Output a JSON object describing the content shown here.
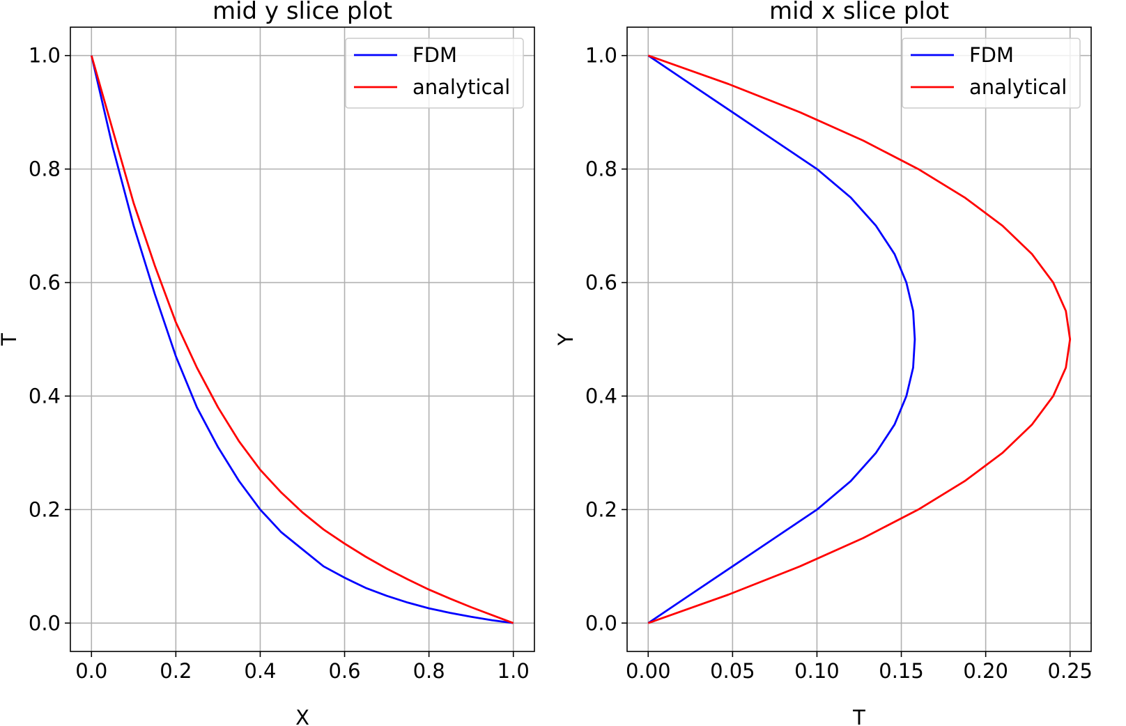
{
  "chart_data": [
    {
      "type": "line",
      "title": "mid y slice plot",
      "xlabel": "X",
      "ylabel": "T",
      "xlim": [
        -0.05,
        1.05
      ],
      "ylim": [
        -0.05,
        1.05
      ],
      "xticks": [
        0.0,
        0.2,
        0.4,
        0.6,
        0.8,
        1.0
      ],
      "xtick_labels": [
        "0.0",
        "0.2",
        "0.4",
        "0.6",
        "0.8",
        "1.0"
      ],
      "yticks": [
        0.0,
        0.2,
        0.4,
        0.6,
        0.8,
        1.0
      ],
      "ytick_labels": [
        "0.0",
        "0.2",
        "0.4",
        "0.6",
        "0.8",
        "1.0"
      ],
      "grid": true,
      "legend": "top-right",
      "series": [
        {
          "name": "FDM",
          "color": "#0000ff",
          "x": [
            0.0,
            0.05,
            0.1,
            0.15,
            0.2,
            0.25,
            0.3,
            0.35,
            0.4,
            0.45,
            0.5,
            0.55,
            0.6,
            0.65,
            0.7,
            0.75,
            0.8,
            0.85,
            0.9,
            0.95,
            1.0
          ],
          "y": [
            1.0,
            0.84,
            0.7,
            0.58,
            0.47,
            0.38,
            0.31,
            0.25,
            0.2,
            0.16,
            0.13,
            0.1,
            0.08,
            0.062,
            0.048,
            0.036,
            0.026,
            0.018,
            0.011,
            0.005,
            0.0
          ]
        },
        {
          "name": "analytical",
          "color": "#ff0000",
          "x": [
            0.0,
            0.05,
            0.1,
            0.15,
            0.2,
            0.25,
            0.3,
            0.35,
            0.4,
            0.45,
            0.5,
            0.55,
            0.6,
            0.65,
            0.7,
            0.75,
            0.8,
            0.85,
            0.9,
            0.95,
            1.0
          ],
          "y": [
            1.0,
            0.87,
            0.74,
            0.63,
            0.53,
            0.45,
            0.38,
            0.32,
            0.27,
            0.23,
            0.195,
            0.165,
            0.14,
            0.117,
            0.096,
            0.077,
            0.059,
            0.043,
            0.028,
            0.014,
            0.0
          ]
        }
      ]
    },
    {
      "type": "line",
      "title": "mid x slice plot",
      "xlabel": "T",
      "ylabel": "Y",
      "xlim": [
        -0.0125,
        0.2625
      ],
      "ylim": [
        -0.05,
        1.05
      ],
      "xticks": [
        0.0,
        0.05,
        0.1,
        0.15,
        0.2,
        0.25
      ],
      "xtick_labels": [
        "0.00",
        "0.05",
        "0.10",
        "0.15",
        "0.20",
        "0.25"
      ],
      "yticks": [
        0.0,
        0.2,
        0.4,
        0.6,
        0.8,
        1.0
      ],
      "ytick_labels": [
        "0.0",
        "0.2",
        "0.4",
        "0.6",
        "0.8",
        "1.0"
      ],
      "grid": true,
      "legend": "top-right",
      "series": [
        {
          "name": "FDM",
          "color": "#0000ff",
          "x": [
            0.0,
            0.025,
            0.05,
            0.075,
            0.1,
            0.12,
            0.135,
            0.146,
            0.153,
            0.157,
            0.158,
            0.157,
            0.153,
            0.146,
            0.135,
            0.12,
            0.1,
            0.075,
            0.05,
            0.025,
            0.0
          ],
          "y": [
            0.0,
            0.05,
            0.1,
            0.15,
            0.2,
            0.25,
            0.3,
            0.35,
            0.4,
            0.45,
            0.5,
            0.55,
            0.6,
            0.65,
            0.7,
            0.75,
            0.8,
            0.85,
            0.9,
            0.95,
            1.0
          ]
        },
        {
          "name": "analytical",
          "color": "#ff0000",
          "x": [
            0.0,
            0.0475,
            0.09,
            0.1275,
            0.16,
            0.1875,
            0.21,
            0.2275,
            0.24,
            0.2475,
            0.25,
            0.2475,
            0.24,
            0.2275,
            0.21,
            0.1875,
            0.16,
            0.1275,
            0.09,
            0.0475,
            0.0
          ],
          "y": [
            0.0,
            0.05,
            0.1,
            0.15,
            0.2,
            0.25,
            0.3,
            0.35,
            0.4,
            0.45,
            0.5,
            0.55,
            0.6,
            0.65,
            0.7,
            0.75,
            0.8,
            0.85,
            0.9,
            0.95,
            1.0
          ]
        }
      ]
    }
  ]
}
